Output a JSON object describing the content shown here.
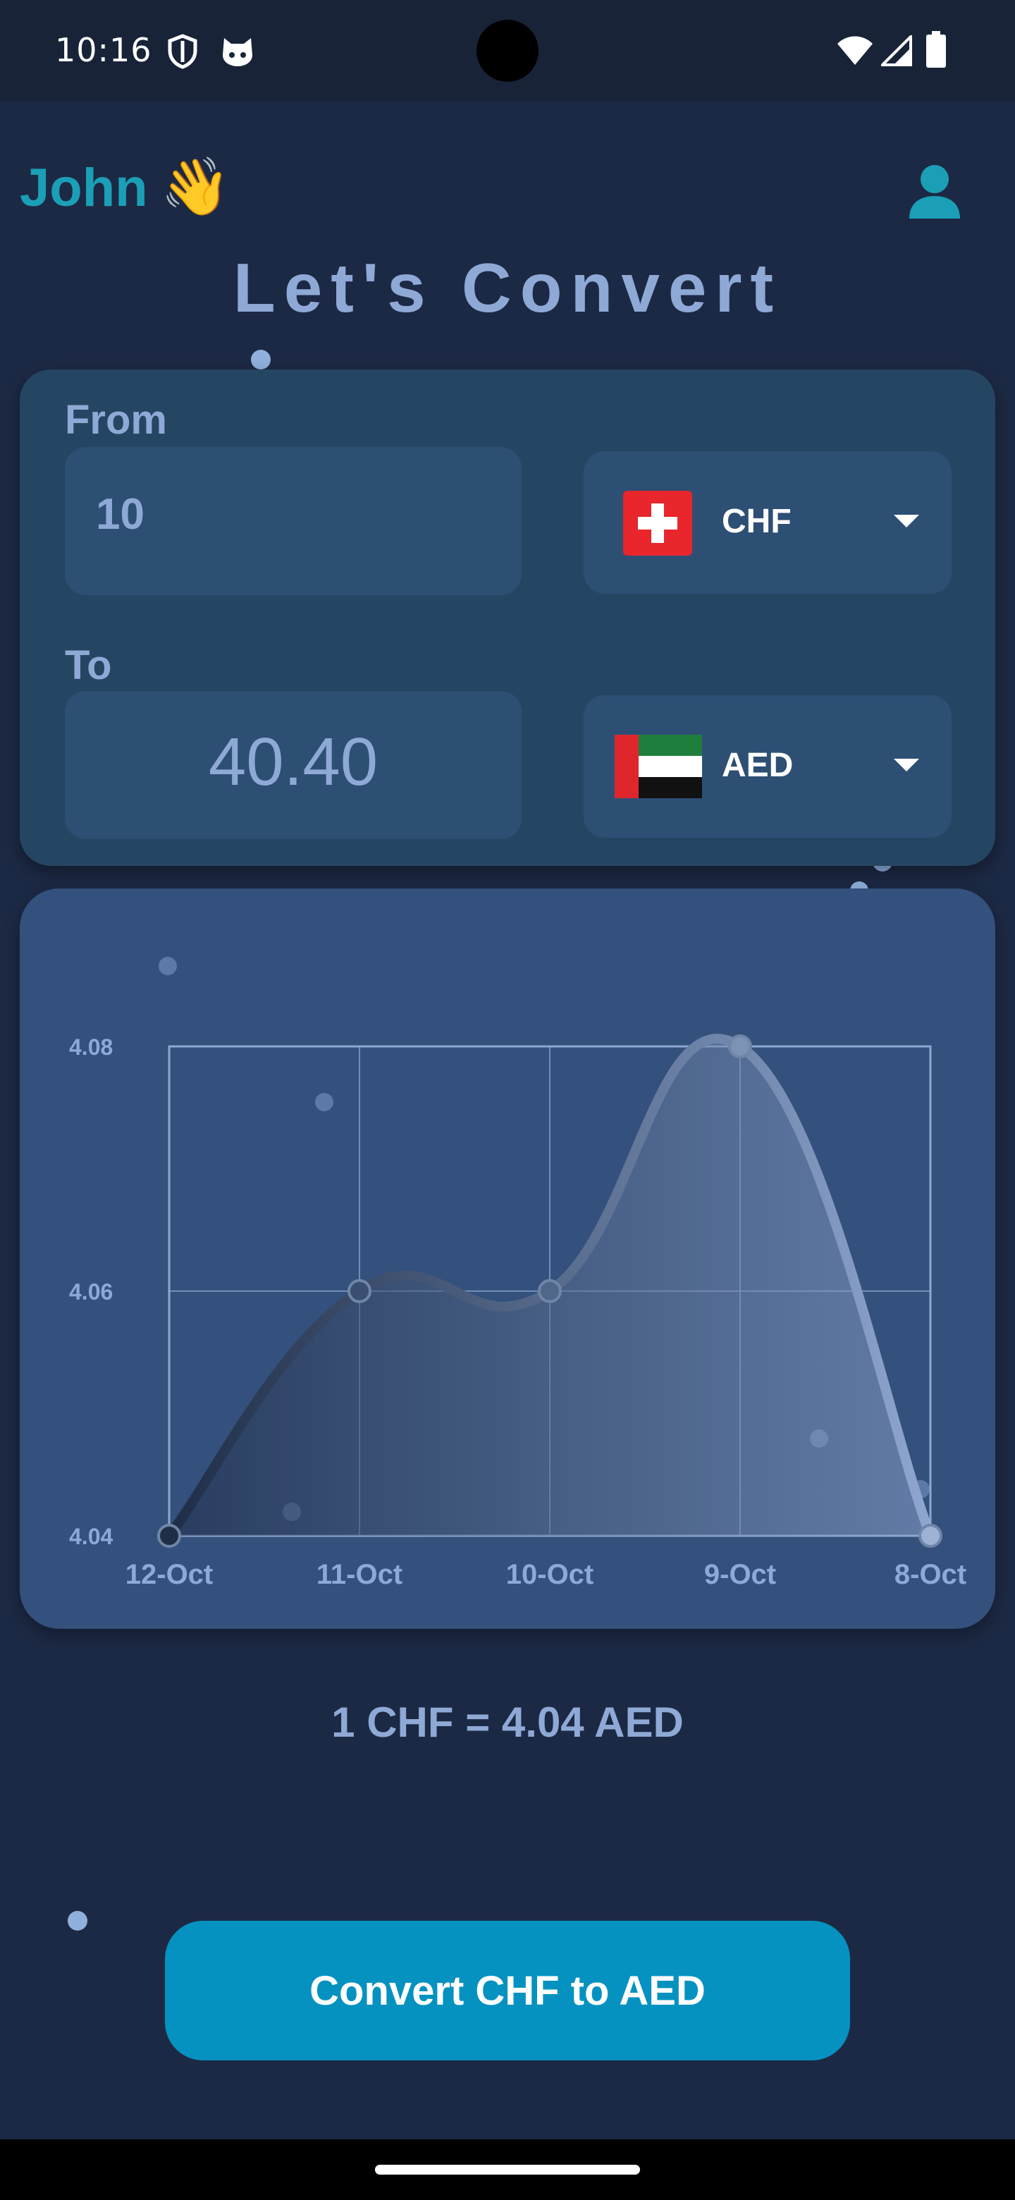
{
  "status_bar": {
    "time": "10:16",
    "left_icons": [
      "shield-icon",
      "cat-face-icon"
    ],
    "right_icons": [
      "wifi-icon",
      "signal-icon",
      "battery-icon"
    ]
  },
  "header": {
    "greeting_name": "John",
    "greeting_emoji": "👋",
    "profile_icon": "person-icon",
    "title": "Let's Convert"
  },
  "converter": {
    "from_label": "From",
    "from_amount": "10",
    "from_currency": "CHF",
    "from_flag": "switzerland-flag-icon",
    "to_label": "To",
    "to_amount": "40.40",
    "to_currency": "AED",
    "to_flag": "uae-flag-icon"
  },
  "chart_data": {
    "type": "line",
    "categories": [
      "12-Oct",
      "11-Oct",
      "10-Oct",
      "9-Oct",
      "8-Oct"
    ],
    "values": [
      4.04,
      4.06,
      4.06,
      4.08,
      4.04
    ],
    "y_ticks": [
      "4.08",
      "4.06",
      "4.04"
    ],
    "ylim": [
      4.04,
      4.08
    ],
    "grid": true,
    "smooth": true,
    "gradient": [
      "#1f2d47",
      "#8ea7d0"
    ]
  },
  "rate": {
    "text": "1 CHF = 4.04 AED"
  },
  "action": {
    "convert_label": "Convert CHF to AED"
  },
  "colors": {
    "background": "#1c2944",
    "card": "#254662",
    "chart_card": "#34507c",
    "accent": "#1b9fb6",
    "button": "#0592c0",
    "text_muted": "#8fa9d6"
  }
}
